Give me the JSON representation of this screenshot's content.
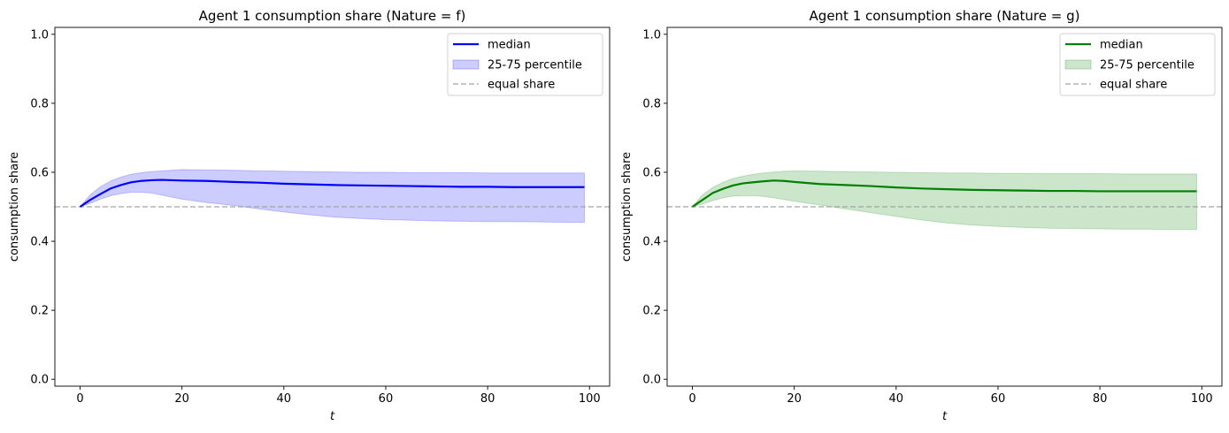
{
  "chart_data": [
    {
      "type": "line",
      "title": "Agent 1 consumption share (Nature = f)",
      "xlabel": "t",
      "ylabel": "consumption share",
      "xlim": [
        -4.95,
        103.95
      ],
      "ylim": [
        -0.02,
        1.02
      ],
      "xticks": [
        0,
        20,
        40,
        60,
        80,
        100
      ],
      "yticks": [
        0.0,
        0.2,
        0.4,
        0.6,
        0.8,
        1.0
      ],
      "grid": false,
      "legend_position": "top-right",
      "color": "#0000ff",
      "band_color": "#0000ff",
      "median_name": "median",
      "band_name": "25-75 percentile",
      "reference_name": "equal share",
      "reference_y": 0.5,
      "median": {
        "t": [
          0,
          2,
          4,
          6,
          8,
          10,
          12,
          14,
          16,
          18,
          20,
          25,
          30,
          35,
          40,
          45,
          50,
          55,
          60,
          65,
          70,
          75,
          80,
          85,
          90,
          95,
          99
        ],
        "y": [
          0.5,
          0.52,
          0.537,
          0.553,
          0.563,
          0.571,
          0.575,
          0.577,
          0.578,
          0.577,
          0.576,
          0.575,
          0.572,
          0.57,
          0.567,
          0.565,
          0.563,
          0.562,
          0.561,
          0.56,
          0.559,
          0.558,
          0.558,
          0.557,
          0.557,
          0.557,
          0.557
        ]
      },
      "band": {
        "t": [
          0,
          2,
          4,
          6,
          8,
          10,
          12,
          14,
          16,
          18,
          20,
          25,
          30,
          35,
          40,
          45,
          50,
          55,
          60,
          65,
          70,
          75,
          80,
          85,
          90,
          95,
          99
        ],
        "lower": [
          0.5,
          0.51,
          0.522,
          0.532,
          0.538,
          0.542,
          0.542,
          0.54,
          0.534,
          0.528,
          0.522,
          0.512,
          0.504,
          0.494,
          0.485,
          0.477,
          0.47,
          0.466,
          0.463,
          0.461,
          0.459,
          0.458,
          0.457,
          0.457,
          0.456,
          0.455,
          0.455
        ],
        "upper": [
          0.5,
          0.535,
          0.558,
          0.575,
          0.586,
          0.594,
          0.599,
          0.602,
          0.604,
          0.606,
          0.608,
          0.607,
          0.606,
          0.604,
          0.603,
          0.602,
          0.601,
          0.6,
          0.6,
          0.599,
          0.599,
          0.599,
          0.598,
          0.598,
          0.598,
          0.598,
          0.598
        ]
      }
    },
    {
      "type": "line",
      "title": "Agent 1 consumption share (Nature = g)",
      "xlabel": "t",
      "ylabel": "consumption share",
      "xlim": [
        -4.95,
        103.95
      ],
      "ylim": [
        -0.02,
        1.02
      ],
      "xticks": [
        0,
        20,
        40,
        60,
        80,
        100
      ],
      "yticks": [
        0.0,
        0.2,
        0.4,
        0.6,
        0.8,
        1.0
      ],
      "grid": false,
      "legend_position": "top-right",
      "color": "#008000",
      "band_color": "#008000",
      "median_name": "median",
      "band_name": "25-75 percentile",
      "reference_name": "equal share",
      "reference_y": 0.5,
      "median": {
        "t": [
          0,
          2,
          4,
          6,
          8,
          10,
          12,
          14,
          16,
          18,
          20,
          25,
          30,
          35,
          40,
          45,
          50,
          55,
          60,
          65,
          70,
          75,
          80,
          85,
          90,
          95,
          99
        ],
        "y": [
          0.5,
          0.52,
          0.54,
          0.552,
          0.562,
          0.568,
          0.571,
          0.574,
          0.576,
          0.575,
          0.572,
          0.566,
          0.563,
          0.56,
          0.556,
          0.553,
          0.551,
          0.549,
          0.548,
          0.547,
          0.546,
          0.546,
          0.545,
          0.545,
          0.545,
          0.545,
          0.545
        ]
      },
      "band": {
        "t": [
          0,
          2,
          4,
          6,
          8,
          10,
          12,
          14,
          16,
          18,
          20,
          25,
          30,
          35,
          40,
          45,
          50,
          55,
          60,
          65,
          70,
          75,
          80,
          85,
          90,
          95,
          99
        ],
        "lower": [
          0.5,
          0.508,
          0.518,
          0.526,
          0.531,
          0.532,
          0.532,
          0.53,
          0.526,
          0.521,
          0.516,
          0.505,
          0.494,
          0.483,
          0.472,
          0.462,
          0.453,
          0.447,
          0.443,
          0.44,
          0.438,
          0.437,
          0.436,
          0.435,
          0.435,
          0.434,
          0.434
        ],
        "upper": [
          0.5,
          0.535,
          0.556,
          0.571,
          0.582,
          0.589,
          0.594,
          0.598,
          0.601,
          0.603,
          0.604,
          0.603,
          0.602,
          0.601,
          0.6,
          0.599,
          0.598,
          0.598,
          0.597,
          0.597,
          0.596,
          0.596,
          0.596,
          0.595,
          0.595,
          0.595,
          0.595
        ]
      }
    }
  ]
}
